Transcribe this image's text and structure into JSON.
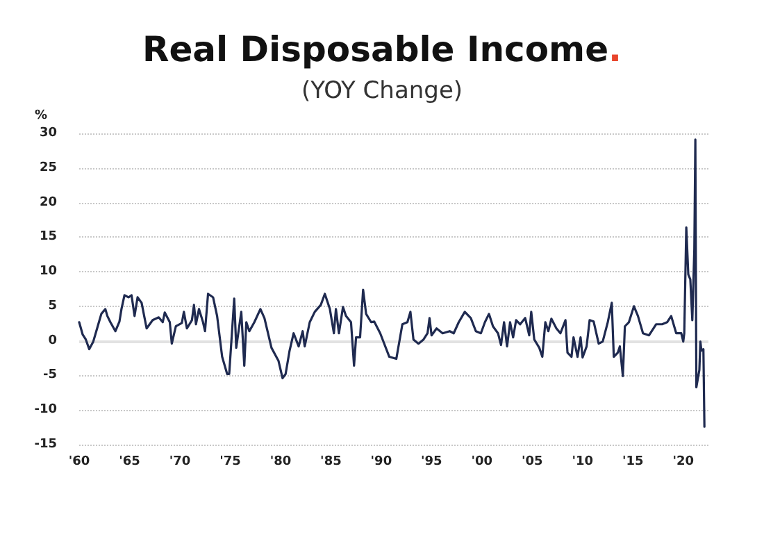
{
  "chart_data": {
    "type": "line",
    "title": "Real Disposable Income.",
    "subtitle": "(YOY Change)",
    "ylabel": "%",
    "x": [
      1960.0,
      1960.35,
      1960.66,
      1961.0,
      1961.4,
      1961.7,
      1961.9,
      1962.2,
      1962.6,
      1962.8,
      1963.1,
      1963.6,
      1964.0,
      1964.2,
      1964.5,
      1964.9,
      1965.2,
      1965.5,
      1965.8,
      1966.2,
      1966.7,
      1967.3,
      1967.9,
      1968.3,
      1968.5,
      1969.0,
      1969.2,
      1969.6,
      1970.2,
      1970.4,
      1970.7,
      1971.2,
      1971.4,
      1971.6,
      1971.9,
      1972.3,
      1972.5,
      1972.8,
      1973.3,
      1973.7,
      1974.2,
      1974.7,
      1974.9,
      1975.4,
      1975.6,
      1976.1,
      1976.4,
      1976.6,
      1976.9,
      1977.4,
      1978.0,
      1978.4,
      1979.1,
      1979.8,
      1980.2,
      1980.5,
      1980.9,
      1981.3,
      1981.8,
      1982.2,
      1982.4,
      1982.9,
      1983.4,
      1984.0,
      1984.4,
      1984.9,
      1985.3,
      1985.5,
      1985.8,
      1986.2,
      1986.5,
      1987.0,
      1987.3,
      1987.5,
      1987.9,
      1988.2,
      1988.5,
      1989.0,
      1989.3,
      1989.9,
      1990.8,
      1991.5,
      1992.1,
      1992.6,
      1992.9,
      1993.2,
      1993.7,
      1994.2,
      1994.6,
      1994.8,
      1995.0,
      1995.5,
      1996.1,
      1996.8,
      1997.2,
      1997.7,
      1998.3,
      1998.9,
      1999.4,
      1999.9,
      2000.3,
      2000.7,
      2001.1,
      2001.6,
      2001.9,
      2002.2,
      2002.5,
      2002.8,
      2003.1,
      2003.4,
      2003.8,
      2004.3,
      2004.7,
      2004.9,
      2005.2,
      2005.7,
      2006.0,
      2006.3,
      2006.6,
      2006.9,
      2007.4,
      2007.8,
      2008.3,
      2008.5,
      2008.9,
      2009.1,
      2009.5,
      2009.8,
      2010.0,
      2010.4,
      2010.7,
      2011.1,
      2011.6,
      2012.0,
      2012.5,
      2012.9,
      2013.1,
      2013.5,
      2013.7,
      2014.0,
      2014.2,
      2014.6,
      2015.1,
      2015.5,
      2016.0,
      2016.6,
      2017.3,
      2017.9,
      2018.4,
      2018.8,
      2019.3,
      2019.8,
      2020.0,
      2020.1,
      2020.3,
      2020.5,
      2020.7,
      2020.9,
      2021.1,
      2021.2,
      2021.3,
      2021.6,
      2021.7,
      2021.8,
      2022.0,
      2022.1
    ],
    "series": [
      {
        "color": "#1f2a50",
        "values": [
          2.7,
          0.9,
          0.2,
          -1.2,
          -0.1,
          1.4,
          2.4,
          3.9,
          4.6,
          3.6,
          2.7,
          1.4,
          2.8,
          4.6,
          6.6,
          6.3,
          6.6,
          3.6,
          6.3,
          5.5,
          1.8,
          3.0,
          3.4,
          2.7,
          4.1,
          2.7,
          -0.4,
          2.1,
          2.6,
          4.2,
          1.8,
          3.0,
          5.2,
          2.4,
          4.6,
          2.7,
          1.4,
          6.8,
          6.3,
          3.6,
          -2.3,
          -4.8,
          -4.8,
          6.1,
          -1.0,
          4.2,
          -3.6,
          2.7,
          1.4,
          2.7,
          4.6,
          3.3,
          -1.0,
          -2.9,
          -5.4,
          -4.8,
          -1.4,
          1.1,
          -0.8,
          1.4,
          -0.8,
          2.7,
          4.2,
          5.2,
          6.8,
          4.6,
          1.1,
          4.6,
          1.1,
          4.9,
          3.6,
          2.7,
          -3.6,
          0.5,
          0.5,
          7.4,
          3.9,
          2.7,
          2.8,
          1.1,
          -2.3,
          -2.6,
          2.4,
          2.7,
          4.2,
          0.2,
          -0.4,
          0.2,
          1.1,
          3.3,
          0.8,
          1.8,
          1.1,
          1.4,
          1.1,
          2.7,
          4.2,
          3.3,
          1.4,
          1.1,
          2.7,
          3.9,
          2.1,
          1.1,
          -0.6,
          2.7,
          -0.8,
          2.7,
          0.5,
          3.0,
          2.4,
          3.3,
          0.8,
          4.2,
          0.2,
          -1.0,
          -2.3,
          2.7,
          1.4,
          3.2,
          1.8,
          1.1,
          3.0,
          -1.7,
          -2.3,
          0.5,
          -2.3,
          0.5,
          -2.4,
          -0.8,
          3.0,
          2.8,
          -0.4,
          -0.1,
          2.7,
          5.5,
          -2.3,
          -1.7,
          -0.8,
          -5.1,
          2.1,
          2.7,
          5.0,
          3.6,
          1.1,
          0.8,
          2.4,
          2.4,
          2.7,
          3.6,
          1.1,
          1.1,
          -0.1,
          1.1,
          16.4,
          9.6,
          8.9,
          3.0,
          13.3,
          29.1,
          -6.7,
          -4.2,
          -0.1,
          -1.4,
          -1.2,
          -12.4
        ]
      }
    ],
    "xlim": [
      1960,
      2022.5
    ],
    "xticks": [
      {
        "value": 1960,
        "label": "'60"
      },
      {
        "value": 1965,
        "label": "'65"
      },
      {
        "value": 1970,
        "label": "'70"
      },
      {
        "value": 1975,
        "label": "'75"
      },
      {
        "value": 1980,
        "label": "'80"
      },
      {
        "value": 1985,
        "label": "'85"
      },
      {
        "value": 1990,
        "label": "'90"
      },
      {
        "value": 1995,
        "label": "'95"
      },
      {
        "value": 2000,
        "label": "'00"
      },
      {
        "value": 2005,
        "label": "'05"
      },
      {
        "value": 2010,
        "label": "'10"
      },
      {
        "value": 2015,
        "label": "'15"
      },
      {
        "value": 2020,
        "label": "'20"
      }
    ],
    "ylim": [
      -15,
      30
    ],
    "yticks": [
      -15,
      -10,
      -5,
      0,
      5,
      10,
      15,
      20,
      25,
      30
    ],
    "ref_lines": [
      {
        "axis": "y",
        "value": 0,
        "color": "#e2e2e2"
      }
    ],
    "grid": "y",
    "marker": "none",
    "line_style": "solid"
  }
}
